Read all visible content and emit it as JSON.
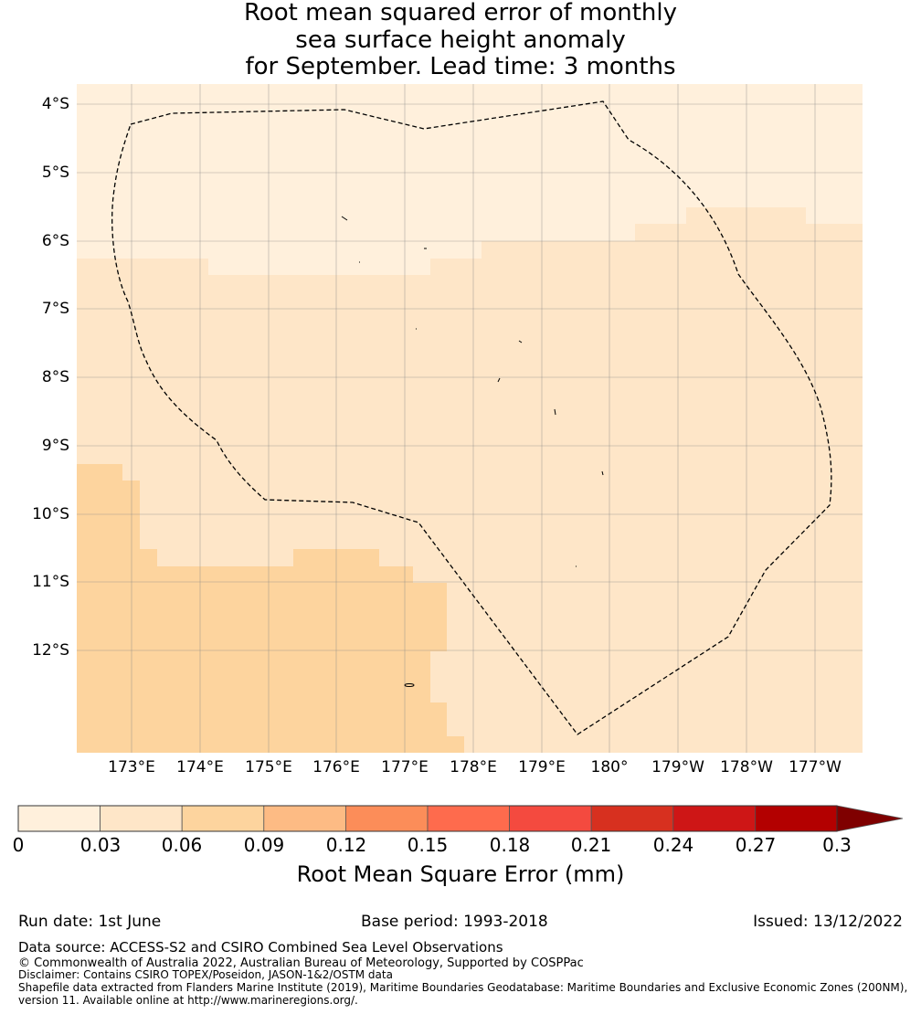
{
  "title": {
    "line1": "Root mean squared error of monthly",
    "line2": "sea surface height anomaly",
    "line3": "for September. Lead time: 3 months"
  },
  "map": {
    "lat_labels": [
      "4°S",
      "5°S",
      "6°S",
      "7°S",
      "8°S",
      "9°S",
      "10°S",
      "11°S",
      "12°S"
    ],
    "lon_labels": [
      "173°E",
      "174°E",
      "175°E",
      "176°E",
      "177°E",
      "178°E",
      "179°E",
      "180°",
      "179°W",
      "178°W",
      "177°W"
    ],
    "fill_colors": {
      "level_0_003": "#fff0dc",
      "level_003_006": "#fee6c8",
      "level_006_009": "#fdd49e"
    },
    "boundary_style": "dashed black line (maritime EEZ boundary)"
  },
  "colorbar": {
    "ticks": [
      "0",
      "0.03",
      "0.06",
      "0.09",
      "0.12",
      "0.15",
      "0.18",
      "0.21",
      "0.24",
      "0.27",
      "0.3"
    ],
    "colors": [
      "#fff0dc",
      "#fee6c8",
      "#fdd49e",
      "#fdbb84",
      "#fc8d59",
      "#fe6b4d",
      "#f44a3f",
      "#d7301f",
      "#ce1616",
      "#b30000",
      "#7f0000"
    ],
    "label": "Root Mean Square Error (mm)",
    "extend": "max"
  },
  "footer": {
    "run_date": "Run date: 1st June",
    "base_period": "Base period: 1993-2018",
    "issued": "Issued: 13/12/2022",
    "data_source": "Data source: ACCESS-S2 and CSIRO Combined Sea Level Observations",
    "copyright": "© Commonwealth of Australia 2022, Australian Bureau of Meteorology, Supported by COSPPac",
    "disclaimer": "Disclaimer: Contains CSIRO TOPEX/Poseidon, JASON-1&2/OSTM data",
    "shapefile_line1": "Shapefile data extracted from Flanders Marine Institute (2019), Maritime Boundaries Geodatabase: Maritime Boundaries and Exclusive Economic Zones (200NM),",
    "shapefile_line2": "version 11. Available online at http://www.marineregions.org/."
  }
}
